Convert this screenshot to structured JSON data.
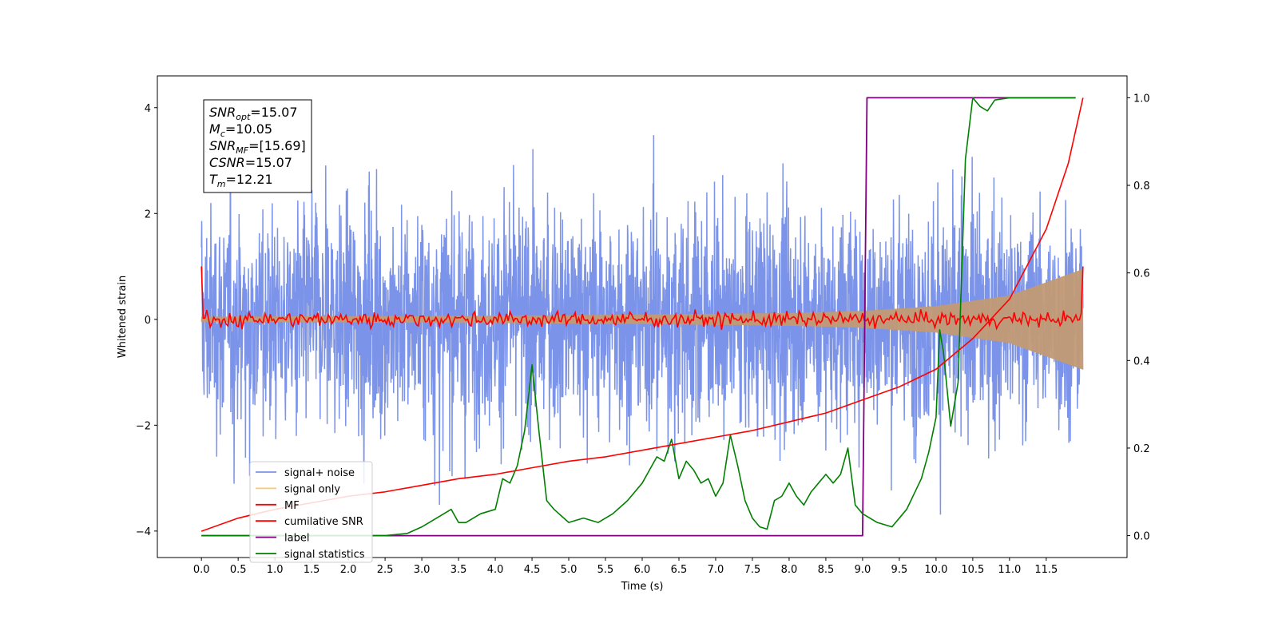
{
  "chart_data": {
    "type": "line",
    "xlabel": "Time (s)",
    "ylabel": "Whitened strain",
    "xlim": [
      -0.6,
      12.6
    ],
    "ylim": [
      -4.5,
      4.6
    ],
    "ylim_right": [
      -0.05,
      1.05
    ],
    "x_ticks": [
      "0.0",
      "0.5",
      "1.0",
      "1.5",
      "2.0",
      "2.5",
      "3.0",
      "3.5",
      "4.0",
      "4.5",
      "5.0",
      "5.5",
      "6.0",
      "6.5",
      "7.0",
      "7.5",
      "8.0",
      "8.5",
      "9.0",
      "9.5",
      "10.0",
      "10.5",
      "11.0",
      "11.5"
    ],
    "y_ticks": [
      "−4",
      "−2",
      "0",
      "2",
      "4"
    ],
    "y_ticks_right": [
      "0.0",
      "0.2",
      "0.4",
      "0.6",
      "0.8",
      "1.0"
    ],
    "legend_position": "lower-left",
    "series": [
      {
        "name": "signal+ noise",
        "color": "#7b93e8",
        "axis": "left",
        "description_x_range": [
          0.0,
          12.0
        ],
        "amplitude_std": 1.0
      },
      {
        "name": "signal only",
        "color": "#ffc76a",
        "axis": "left",
        "x_range": [
          0.0,
          12.0
        ],
        "envelope": {
          "x": [
            0,
            2,
            4,
            6,
            8,
            9,
            10,
            11,
            12
          ],
          "amp": [
            0.05,
            0.06,
            0.07,
            0.09,
            0.12,
            0.16,
            0.25,
            0.45,
            0.95
          ]
        }
      },
      {
        "name": "MF",
        "color": "#ff0000",
        "axis": "left",
        "x_range": [
          0.0,
          12.0
        ],
        "start_value": 1.0,
        "end_value": 1.0,
        "baseline": 0.0,
        "noise": 0.07
      },
      {
        "name": "cumilative SNR",
        "color": "#ff0000",
        "axis": "right",
        "x": [
          0.0,
          0.5,
          1.0,
          1.5,
          2.0,
          2.5,
          3.0,
          3.5,
          4.0,
          4.5,
          5.0,
          5.5,
          6.0,
          6.5,
          7.0,
          7.5,
          8.0,
          8.5,
          9.0,
          9.5,
          10.0,
          10.5,
          11.0,
          11.5,
          11.8,
          12.0
        ],
        "y": [
          0.01,
          0.04,
          0.06,
          0.075,
          0.09,
          0.1,
          0.115,
          0.13,
          0.14,
          0.155,
          0.17,
          0.18,
          0.195,
          0.21,
          0.225,
          0.24,
          0.26,
          0.28,
          0.31,
          0.34,
          0.38,
          0.45,
          0.54,
          0.7,
          0.85,
          1.0
        ]
      },
      {
        "name": "label",
        "color": "#800080",
        "axis": "right",
        "x": [
          0.0,
          9.0,
          9.06,
          11.9
        ],
        "y": [
          0.0,
          0.0,
          1.0,
          1.0
        ]
      },
      {
        "name": "signal statistics",
        "color": "#008000",
        "axis": "right",
        "x": [
          0.0,
          0.5,
          1.0,
          1.5,
          2.0,
          2.5,
          2.8,
          3.0,
          3.2,
          3.4,
          3.5,
          3.6,
          3.8,
          4.0,
          4.1,
          4.2,
          4.3,
          4.4,
          4.5,
          4.6,
          4.7,
          4.8,
          5.0,
          5.2,
          5.4,
          5.6,
          5.8,
          6.0,
          6.1,
          6.2,
          6.3,
          6.4,
          6.5,
          6.6,
          6.7,
          6.8,
          6.9,
          7.0,
          7.1,
          7.2,
          7.3,
          7.4,
          7.5,
          7.6,
          7.7,
          7.8,
          7.9,
          8.0,
          8.1,
          8.2,
          8.3,
          8.4,
          8.5,
          8.6,
          8.7,
          8.8,
          8.9,
          9.0,
          9.2,
          9.4,
          9.6,
          9.8,
          9.9,
          10.0,
          10.05,
          10.1,
          10.2,
          10.3,
          10.4,
          10.5,
          10.6,
          10.7,
          10.8,
          11.0,
          11.2,
          11.5,
          11.8,
          11.9
        ],
        "y": [
          0.0,
          0.0,
          0.0,
          0.0,
          0.0,
          0.0,
          0.005,
          0.02,
          0.04,
          0.06,
          0.03,
          0.03,
          0.05,
          0.06,
          0.13,
          0.12,
          0.16,
          0.24,
          0.39,
          0.23,
          0.08,
          0.06,
          0.03,
          0.04,
          0.03,
          0.05,
          0.08,
          0.12,
          0.15,
          0.18,
          0.17,
          0.22,
          0.13,
          0.17,
          0.15,
          0.12,
          0.13,
          0.09,
          0.12,
          0.23,
          0.16,
          0.08,
          0.04,
          0.02,
          0.015,
          0.08,
          0.09,
          0.12,
          0.09,
          0.07,
          0.1,
          0.12,
          0.14,
          0.12,
          0.14,
          0.2,
          0.07,
          0.05,
          0.03,
          0.02,
          0.06,
          0.13,
          0.19,
          0.27,
          0.47,
          0.42,
          0.25,
          0.35,
          0.86,
          1.0,
          0.98,
          0.97,
          0.995,
          1.0,
          1.0,
          1.0,
          1.0,
          1.0
        ]
      }
    ],
    "annotation": {
      "lines": [
        {
          "base": "SNR",
          "sub": "opt",
          "value": "=15.07"
        },
        {
          "base": "M",
          "sub": "c",
          "value": "=10.05"
        },
        {
          "base": "SNR",
          "sub": "MF",
          "value": "=[15.69]"
        },
        {
          "base": "CSNR",
          "sub": "",
          "value": "=15.07"
        },
        {
          "base": "T",
          "sub": "m",
          "value": "=12.21"
        }
      ]
    }
  }
}
